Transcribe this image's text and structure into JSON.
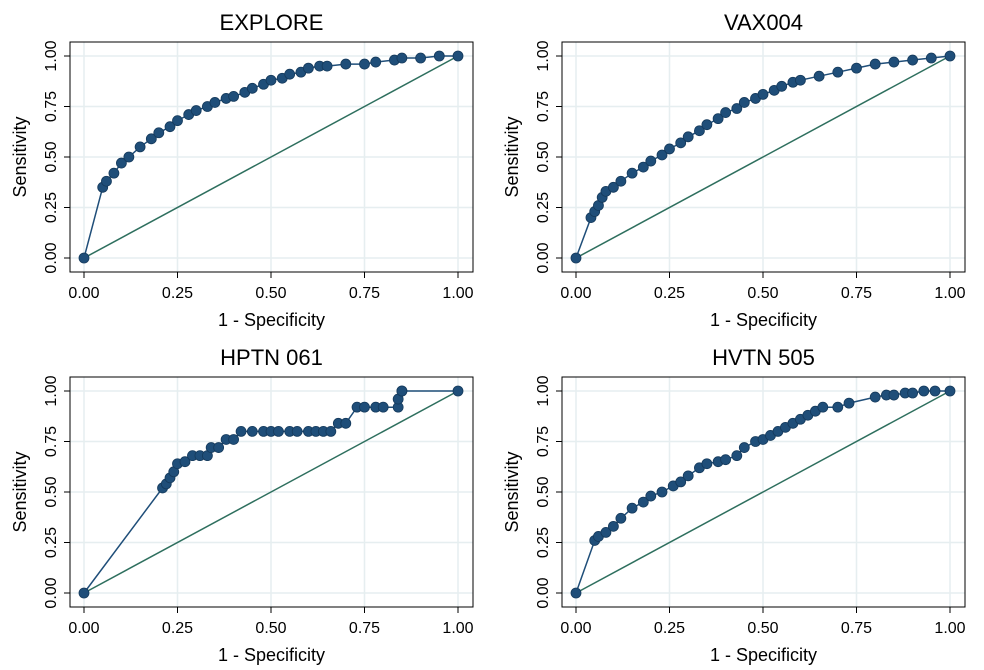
{
  "chart_data": [
    {
      "type": "line",
      "title": "EXPLORE",
      "xlabel": "1 - Specificity",
      "ylabel": "Sensitivity",
      "xticks": [
        "0.00",
        "0.25",
        "0.50",
        "0.75",
        "1.00"
      ],
      "yticks": [
        "0.00",
        "0.25",
        "0.50",
        "0.75",
        "1.00"
      ],
      "xlim": [
        0,
        1
      ],
      "ylim": [
        0,
        1
      ],
      "grid": true,
      "series": [
        {
          "role": "roc",
          "x": [
            0,
            0.05,
            0.06,
            0.08,
            0.1,
            0.12,
            0.15,
            0.18,
            0.2,
            0.23,
            0.25,
            0.28,
            0.3,
            0.33,
            0.35,
            0.38,
            0.4,
            0.43,
            0.45,
            0.48,
            0.5,
            0.53,
            0.55,
            0.58,
            0.6,
            0.63,
            0.65,
            0.7,
            0.75,
            0.78,
            0.83,
            0.85,
            0.9,
            0.95,
            1.0
          ],
          "y": [
            0,
            0.35,
            0.38,
            0.42,
            0.47,
            0.5,
            0.55,
            0.59,
            0.62,
            0.65,
            0.68,
            0.71,
            0.73,
            0.75,
            0.77,
            0.79,
            0.8,
            0.82,
            0.84,
            0.86,
            0.88,
            0.89,
            0.91,
            0.92,
            0.94,
            0.95,
            0.95,
            0.96,
            0.96,
            0.97,
            0.98,
            0.99,
            0.99,
            1.0,
            1.0
          ]
        },
        {
          "role": "reference",
          "x": [
            0,
            1
          ],
          "y": [
            0,
            1
          ]
        }
      ],
      "colors": {
        "roc": "#1f4e79",
        "reference": "#2e6f5e"
      }
    },
    {
      "type": "line",
      "title": "VAX004",
      "xlabel": "1 - Specificity",
      "ylabel": "Sensitivity",
      "xticks": [
        "0.00",
        "0.25",
        "0.50",
        "0.75",
        "1.00"
      ],
      "yticks": [
        "0.00",
        "0.25",
        "0.50",
        "0.75",
        "1.00"
      ],
      "xlim": [
        0,
        1
      ],
      "ylim": [
        0,
        1
      ],
      "grid": true,
      "series": [
        {
          "role": "roc",
          "x": [
            0,
            0.04,
            0.05,
            0.06,
            0.07,
            0.08,
            0.1,
            0.12,
            0.15,
            0.18,
            0.2,
            0.23,
            0.25,
            0.28,
            0.3,
            0.33,
            0.35,
            0.38,
            0.4,
            0.43,
            0.45,
            0.48,
            0.5,
            0.53,
            0.55,
            0.58,
            0.6,
            0.65,
            0.7,
            0.75,
            0.8,
            0.85,
            0.9,
            0.95,
            1.0
          ],
          "y": [
            0,
            0.2,
            0.23,
            0.26,
            0.3,
            0.33,
            0.35,
            0.38,
            0.42,
            0.45,
            0.48,
            0.51,
            0.54,
            0.57,
            0.6,
            0.63,
            0.66,
            0.69,
            0.72,
            0.74,
            0.77,
            0.79,
            0.81,
            0.83,
            0.85,
            0.87,
            0.88,
            0.9,
            0.92,
            0.94,
            0.96,
            0.97,
            0.98,
            0.99,
            1.0
          ]
        },
        {
          "role": "reference",
          "x": [
            0,
            1
          ],
          "y": [
            0,
            1
          ]
        }
      ],
      "colors": {
        "roc": "#1f4e79",
        "reference": "#2e6f5e"
      }
    },
    {
      "type": "line",
      "title": "HPTN 061",
      "xlabel": "1 - Specificity",
      "ylabel": "Sensitivity",
      "xticks": [
        "0.00",
        "0.25",
        "0.50",
        "0.75",
        "1.00"
      ],
      "yticks": [
        "0.00",
        "0.25",
        "0.50",
        "0.75",
        "1.00"
      ],
      "xlim": [
        0,
        1
      ],
      "ylim": [
        0,
        1
      ],
      "grid": true,
      "series": [
        {
          "role": "roc",
          "x": [
            0,
            0.21,
            0.22,
            0.23,
            0.24,
            0.25,
            0.27,
            0.29,
            0.31,
            0.33,
            0.34,
            0.36,
            0.38,
            0.4,
            0.42,
            0.45,
            0.48,
            0.5,
            0.52,
            0.55,
            0.57,
            0.6,
            0.62,
            0.64,
            0.66,
            0.68,
            0.7,
            0.73,
            0.75,
            0.78,
            0.8,
            0.84,
            0.84,
            0.85,
            0.85,
            1.0
          ],
          "y": [
            0,
            0.52,
            0.54,
            0.57,
            0.6,
            0.64,
            0.65,
            0.68,
            0.68,
            0.68,
            0.72,
            0.72,
            0.76,
            0.76,
            0.8,
            0.8,
            0.8,
            0.8,
            0.8,
            0.8,
            0.8,
            0.8,
            0.8,
            0.8,
            0.8,
            0.84,
            0.84,
            0.92,
            0.92,
            0.92,
            0.92,
            0.92,
            0.96,
            1.0,
            1.0,
            1.0
          ]
        },
        {
          "role": "reference",
          "x": [
            0,
            1
          ],
          "y": [
            0,
            1
          ]
        }
      ],
      "colors": {
        "roc": "#1f4e79",
        "reference": "#2e6f5e"
      }
    },
    {
      "type": "line",
      "title": "HVTN 505",
      "xlabel": "1 - Specificity",
      "ylabel": "Sensitivity",
      "xticks": [
        "0.00",
        "0.25",
        "0.50",
        "0.75",
        "1.00"
      ],
      "yticks": [
        "0.00",
        "0.25",
        "0.50",
        "0.75",
        "1.00"
      ],
      "xlim": [
        0,
        1
      ],
      "ylim": [
        0,
        1
      ],
      "grid": true,
      "series": [
        {
          "role": "roc",
          "x": [
            0,
            0.05,
            0.06,
            0.08,
            0.1,
            0.12,
            0.15,
            0.18,
            0.2,
            0.23,
            0.26,
            0.28,
            0.3,
            0.33,
            0.35,
            0.38,
            0.4,
            0.43,
            0.45,
            0.48,
            0.5,
            0.52,
            0.54,
            0.56,
            0.58,
            0.6,
            0.62,
            0.64,
            0.66,
            0.7,
            0.73,
            0.8,
            0.83,
            0.85,
            0.88,
            0.9,
            0.93,
            0.96,
            1.0
          ],
          "y": [
            0,
            0.26,
            0.28,
            0.3,
            0.33,
            0.37,
            0.42,
            0.45,
            0.48,
            0.5,
            0.53,
            0.55,
            0.58,
            0.62,
            0.64,
            0.65,
            0.66,
            0.68,
            0.72,
            0.75,
            0.76,
            0.78,
            0.8,
            0.82,
            0.84,
            0.86,
            0.88,
            0.9,
            0.92,
            0.92,
            0.94,
            0.97,
            0.98,
            0.98,
            0.99,
            0.99,
            1.0,
            1.0,
            1.0
          ]
        },
        {
          "role": "reference",
          "x": [
            0,
            1
          ],
          "y": [
            0,
            1
          ]
        }
      ],
      "colors": {
        "roc": "#1f4e79",
        "reference": "#2e6f5e"
      }
    }
  ]
}
